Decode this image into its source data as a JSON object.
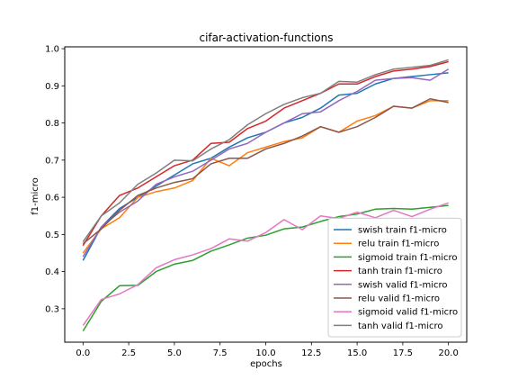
{
  "chart_data": {
    "type": "line",
    "title": "cifar-activation-functions",
    "xlabel": "epochs",
    "ylabel": "f1-micro",
    "xlim": [
      -1,
      21
    ],
    "ylim": [
      0.21,
      1.005
    ],
    "xticks": [
      0.0,
      2.5,
      5.0,
      7.5,
      10.0,
      12.5,
      15.0,
      17.5,
      20.0
    ],
    "xtick_labels": [
      "0.0",
      "2.5",
      "5.0",
      "7.5",
      "10.0",
      "12.5",
      "15.0",
      "17.5",
      "20.0"
    ],
    "yticks": [
      0.3,
      0.4,
      0.5,
      0.6,
      0.7,
      0.8,
      0.9,
      1.0
    ],
    "ytick_labels": [
      "0.3",
      "0.4",
      "0.5",
      "0.6",
      "0.7",
      "0.8",
      "0.9",
      "1.0"
    ],
    "grid": false,
    "legend_position": "bottom-right",
    "x": [
      0,
      1,
      2,
      3,
      4,
      5,
      6,
      7,
      8,
      9,
      10,
      11,
      12,
      13,
      14,
      15,
      16,
      17,
      18,
      19,
      20
    ],
    "series": [
      {
        "name": "swish train f1-micro",
        "color": "#1f77b4",
        "values": [
          0.43,
          0.52,
          0.57,
          0.6,
          0.63,
          0.66,
          0.69,
          0.705,
          0.735,
          0.76,
          0.775,
          0.8,
          0.815,
          0.84,
          0.875,
          0.88,
          0.905,
          0.92,
          0.925,
          0.93,
          0.935
        ]
      },
      {
        "name": "relu train f1-micro",
        "color": "#ff7f0e",
        "values": [
          0.45,
          0.515,
          0.545,
          0.6,
          0.615,
          0.625,
          0.645,
          0.705,
          0.685,
          0.72,
          0.735,
          0.75,
          0.76,
          0.79,
          0.775,
          0.805,
          0.82,
          0.845,
          0.84,
          0.86,
          0.86
        ]
      },
      {
        "name": "sigmoid train f1-micro",
        "color": "#2ca02c",
        "values": [
          0.24,
          0.32,
          0.362,
          0.363,
          0.4,
          0.42,
          0.43,
          0.455,
          0.472,
          0.49,
          0.498,
          0.515,
          0.52,
          0.535,
          0.548,
          0.555,
          0.568,
          0.57,
          0.568,
          0.573,
          0.578
        ]
      },
      {
        "name": "tanh train f1-micro",
        "color": "#d62728",
        "values": [
          0.47,
          0.55,
          0.605,
          0.625,
          0.655,
          0.685,
          0.7,
          0.745,
          0.748,
          0.785,
          0.805,
          0.84,
          0.86,
          0.88,
          0.905,
          0.905,
          0.925,
          0.94,
          0.945,
          0.952,
          0.965
        ]
      },
      {
        "name": "swish valid f1-micro",
        "color": "#9467bd",
        "values": [
          0.44,
          0.52,
          0.56,
          0.59,
          0.635,
          0.655,
          0.67,
          0.7,
          0.73,
          0.745,
          0.775,
          0.8,
          0.825,
          0.83,
          0.86,
          0.885,
          0.915,
          0.92,
          0.922,
          0.915,
          0.945
        ]
      },
      {
        "name": "relu valid f1-micro",
        "color": "#8c564b",
        "values": [
          0.475,
          0.515,
          0.565,
          0.605,
          0.625,
          0.64,
          0.65,
          0.69,
          0.705,
          0.705,
          0.73,
          0.745,
          0.765,
          0.79,
          0.775,
          0.79,
          0.815,
          0.845,
          0.84,
          0.865,
          0.855
        ]
      },
      {
        "name": "sigmoid valid f1-micro",
        "color": "#e377c2",
        "values": [
          0.255,
          0.325,
          0.34,
          0.365,
          0.41,
          0.432,
          0.445,
          0.462,
          0.488,
          0.482,
          0.505,
          0.54,
          0.513,
          0.55,
          0.543,
          0.56,
          0.545,
          0.565,
          0.548,
          0.568,
          0.585
        ]
      },
      {
        "name": "tanh valid f1-micro",
        "color": "#7f7f7f",
        "values": [
          0.48,
          0.55,
          0.585,
          0.635,
          0.665,
          0.7,
          0.698,
          0.73,
          0.755,
          0.795,
          0.825,
          0.85,
          0.868,
          0.88,
          0.912,
          0.91,
          0.93,
          0.945,
          0.95,
          0.955,
          0.97
        ]
      }
    ]
  }
}
